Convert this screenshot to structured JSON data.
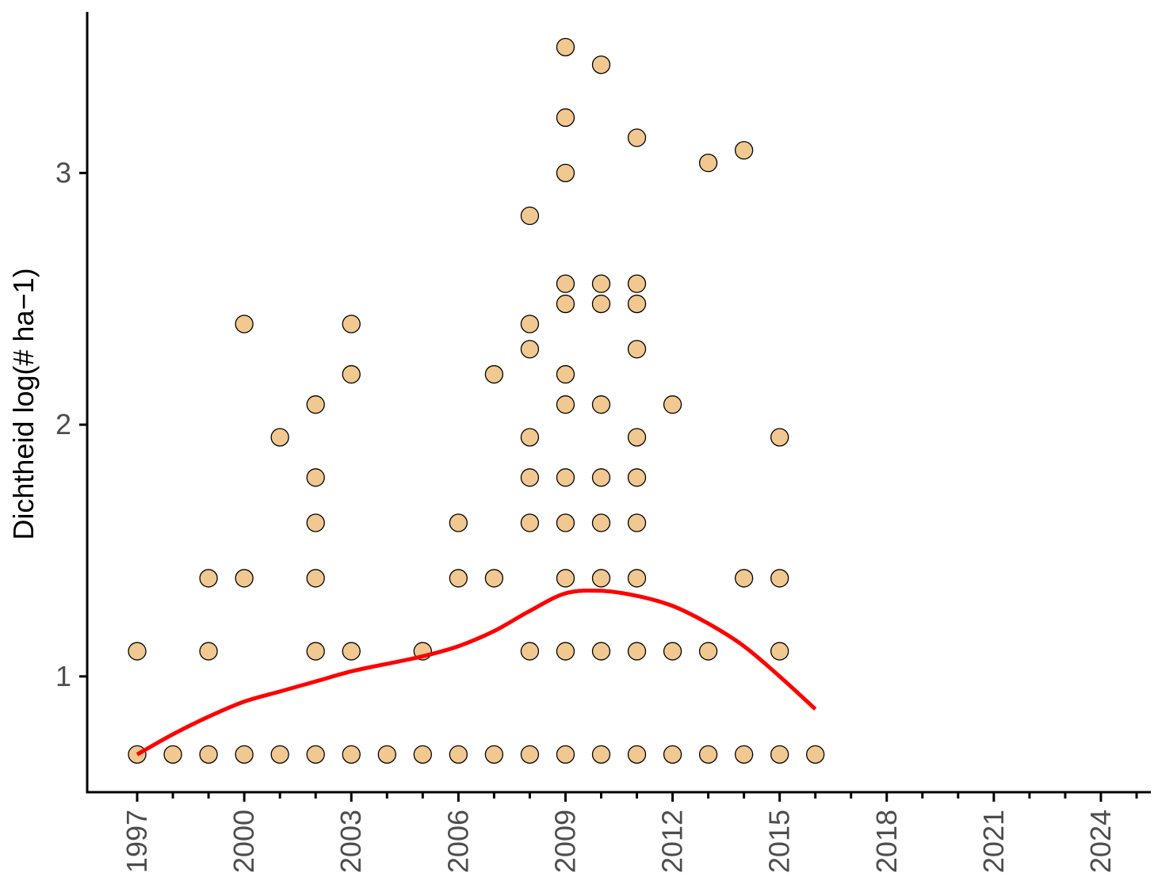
{
  "chart_data": {
    "type": "scatter",
    "title": "",
    "xlabel": "",
    "ylabel": "Dichtheid log(# ha−1)",
    "xlim": [
      1995.6,
      2025.4
    ],
    "ylim": [
      0.54,
      3.64
    ],
    "x_ticks": [
      1997,
      2000,
      2003,
      2006,
      2009,
      2012,
      2015,
      2018,
      2021,
      2024
    ],
    "x_minor_ticks": [
      1998,
      1999,
      2001,
      2002,
      2004,
      2005,
      2007,
      2008,
      2010,
      2011,
      2013,
      2014,
      2016,
      2017,
      2019,
      2020,
      2022,
      2023,
      2025
    ],
    "y_ticks": [
      1,
      2,
      3
    ],
    "grid": false,
    "legend": "none",
    "colors": {
      "point_fill": "#F0C890",
      "point_stroke": "#000000",
      "trend_line": "#FF0000",
      "axis": "#000000",
      "tick_text": "#4D4D4D"
    },
    "series": [
      {
        "type": "scatter",
        "points": [
          [
            1997,
            1.1
          ],
          [
            1997,
            0.69
          ],
          [
            1998,
            0.69
          ],
          [
            1999,
            1.39
          ],
          [
            1999,
            1.1
          ],
          [
            1999,
            0.69
          ],
          [
            2000,
            2.4
          ],
          [
            2000,
            1.39
          ],
          [
            2000,
            0.69
          ],
          [
            2001,
            1.95
          ],
          [
            2001,
            0.69
          ],
          [
            2002,
            2.08
          ],
          [
            2002,
            1.79
          ],
          [
            2002,
            1.61
          ],
          [
            2002,
            1.39
          ],
          [
            2002,
            1.1
          ],
          [
            2002,
            0.69
          ],
          [
            2003,
            2.4
          ],
          [
            2003,
            2.2
          ],
          [
            2003,
            1.1
          ],
          [
            2003,
            0.69
          ],
          [
            2004,
            0.69
          ],
          [
            2005,
            1.1
          ],
          [
            2005,
            0.69
          ],
          [
            2006,
            1.61
          ],
          [
            2006,
            1.39
          ],
          [
            2006,
            0.69
          ],
          [
            2007,
            2.2
          ],
          [
            2007,
            1.39
          ],
          [
            2007,
            0.69
          ],
          [
            2008,
            2.83
          ],
          [
            2008,
            2.4
          ],
          [
            2008,
            2.3
          ],
          [
            2008,
            1.95
          ],
          [
            2008,
            1.79
          ],
          [
            2008,
            1.61
          ],
          [
            2008,
            1.1
          ],
          [
            2008,
            0.69
          ],
          [
            2009,
            3.5
          ],
          [
            2009,
            3.22
          ],
          [
            2009,
            3.0
          ],
          [
            2009,
            2.56
          ],
          [
            2009,
            2.48
          ],
          [
            2009,
            2.2
          ],
          [
            2009,
            2.08
          ],
          [
            2009,
            1.79
          ],
          [
            2009,
            1.61
          ],
          [
            2009,
            1.39
          ],
          [
            2009,
            1.1
          ],
          [
            2009,
            0.69
          ],
          [
            2010,
            3.43
          ],
          [
            2010,
            2.56
          ],
          [
            2010,
            2.48
          ],
          [
            2010,
            2.08
          ],
          [
            2010,
            1.79
          ],
          [
            2010,
            1.61
          ],
          [
            2010,
            1.39
          ],
          [
            2010,
            1.1
          ],
          [
            2010,
            0.69
          ],
          [
            2011,
            3.14
          ],
          [
            2011,
            2.56
          ],
          [
            2011,
            2.48
          ],
          [
            2011,
            2.3
          ],
          [
            2011,
            1.95
          ],
          [
            2011,
            1.79
          ],
          [
            2011,
            1.61
          ],
          [
            2011,
            1.39
          ],
          [
            2011,
            1.1
          ],
          [
            2011,
            0.69
          ],
          [
            2012,
            2.08
          ],
          [
            2012,
            1.1
          ],
          [
            2012,
            0.69
          ],
          [
            2013,
            3.04
          ],
          [
            2013,
            1.1
          ],
          [
            2013,
            0.69
          ],
          [
            2014,
            3.09
          ],
          [
            2014,
            1.39
          ],
          [
            2014,
            0.69
          ],
          [
            2015,
            1.95
          ],
          [
            2015,
            1.39
          ],
          [
            2015,
            1.1
          ],
          [
            2015,
            0.69
          ],
          [
            2016,
            0.69
          ]
        ]
      },
      {
        "type": "line",
        "points": [
          [
            1997,
            0.69
          ],
          [
            1998,
            0.77
          ],
          [
            1999,
            0.84
          ],
          [
            2000,
            0.9
          ],
          [
            2001,
            0.94
          ],
          [
            2002,
            0.98
          ],
          [
            2003,
            1.02
          ],
          [
            2004,
            1.05
          ],
          [
            2005,
            1.08
          ],
          [
            2006,
            1.12
          ],
          [
            2007,
            1.18
          ],
          [
            2008,
            1.26
          ],
          [
            2009,
            1.33
          ],
          [
            2010,
            1.34
          ],
          [
            2011,
            1.32
          ],
          [
            2012,
            1.28
          ],
          [
            2013,
            1.21
          ],
          [
            2014,
            1.12
          ],
          [
            2015,
            1.0
          ],
          [
            2016,
            0.87
          ]
        ]
      }
    ]
  }
}
